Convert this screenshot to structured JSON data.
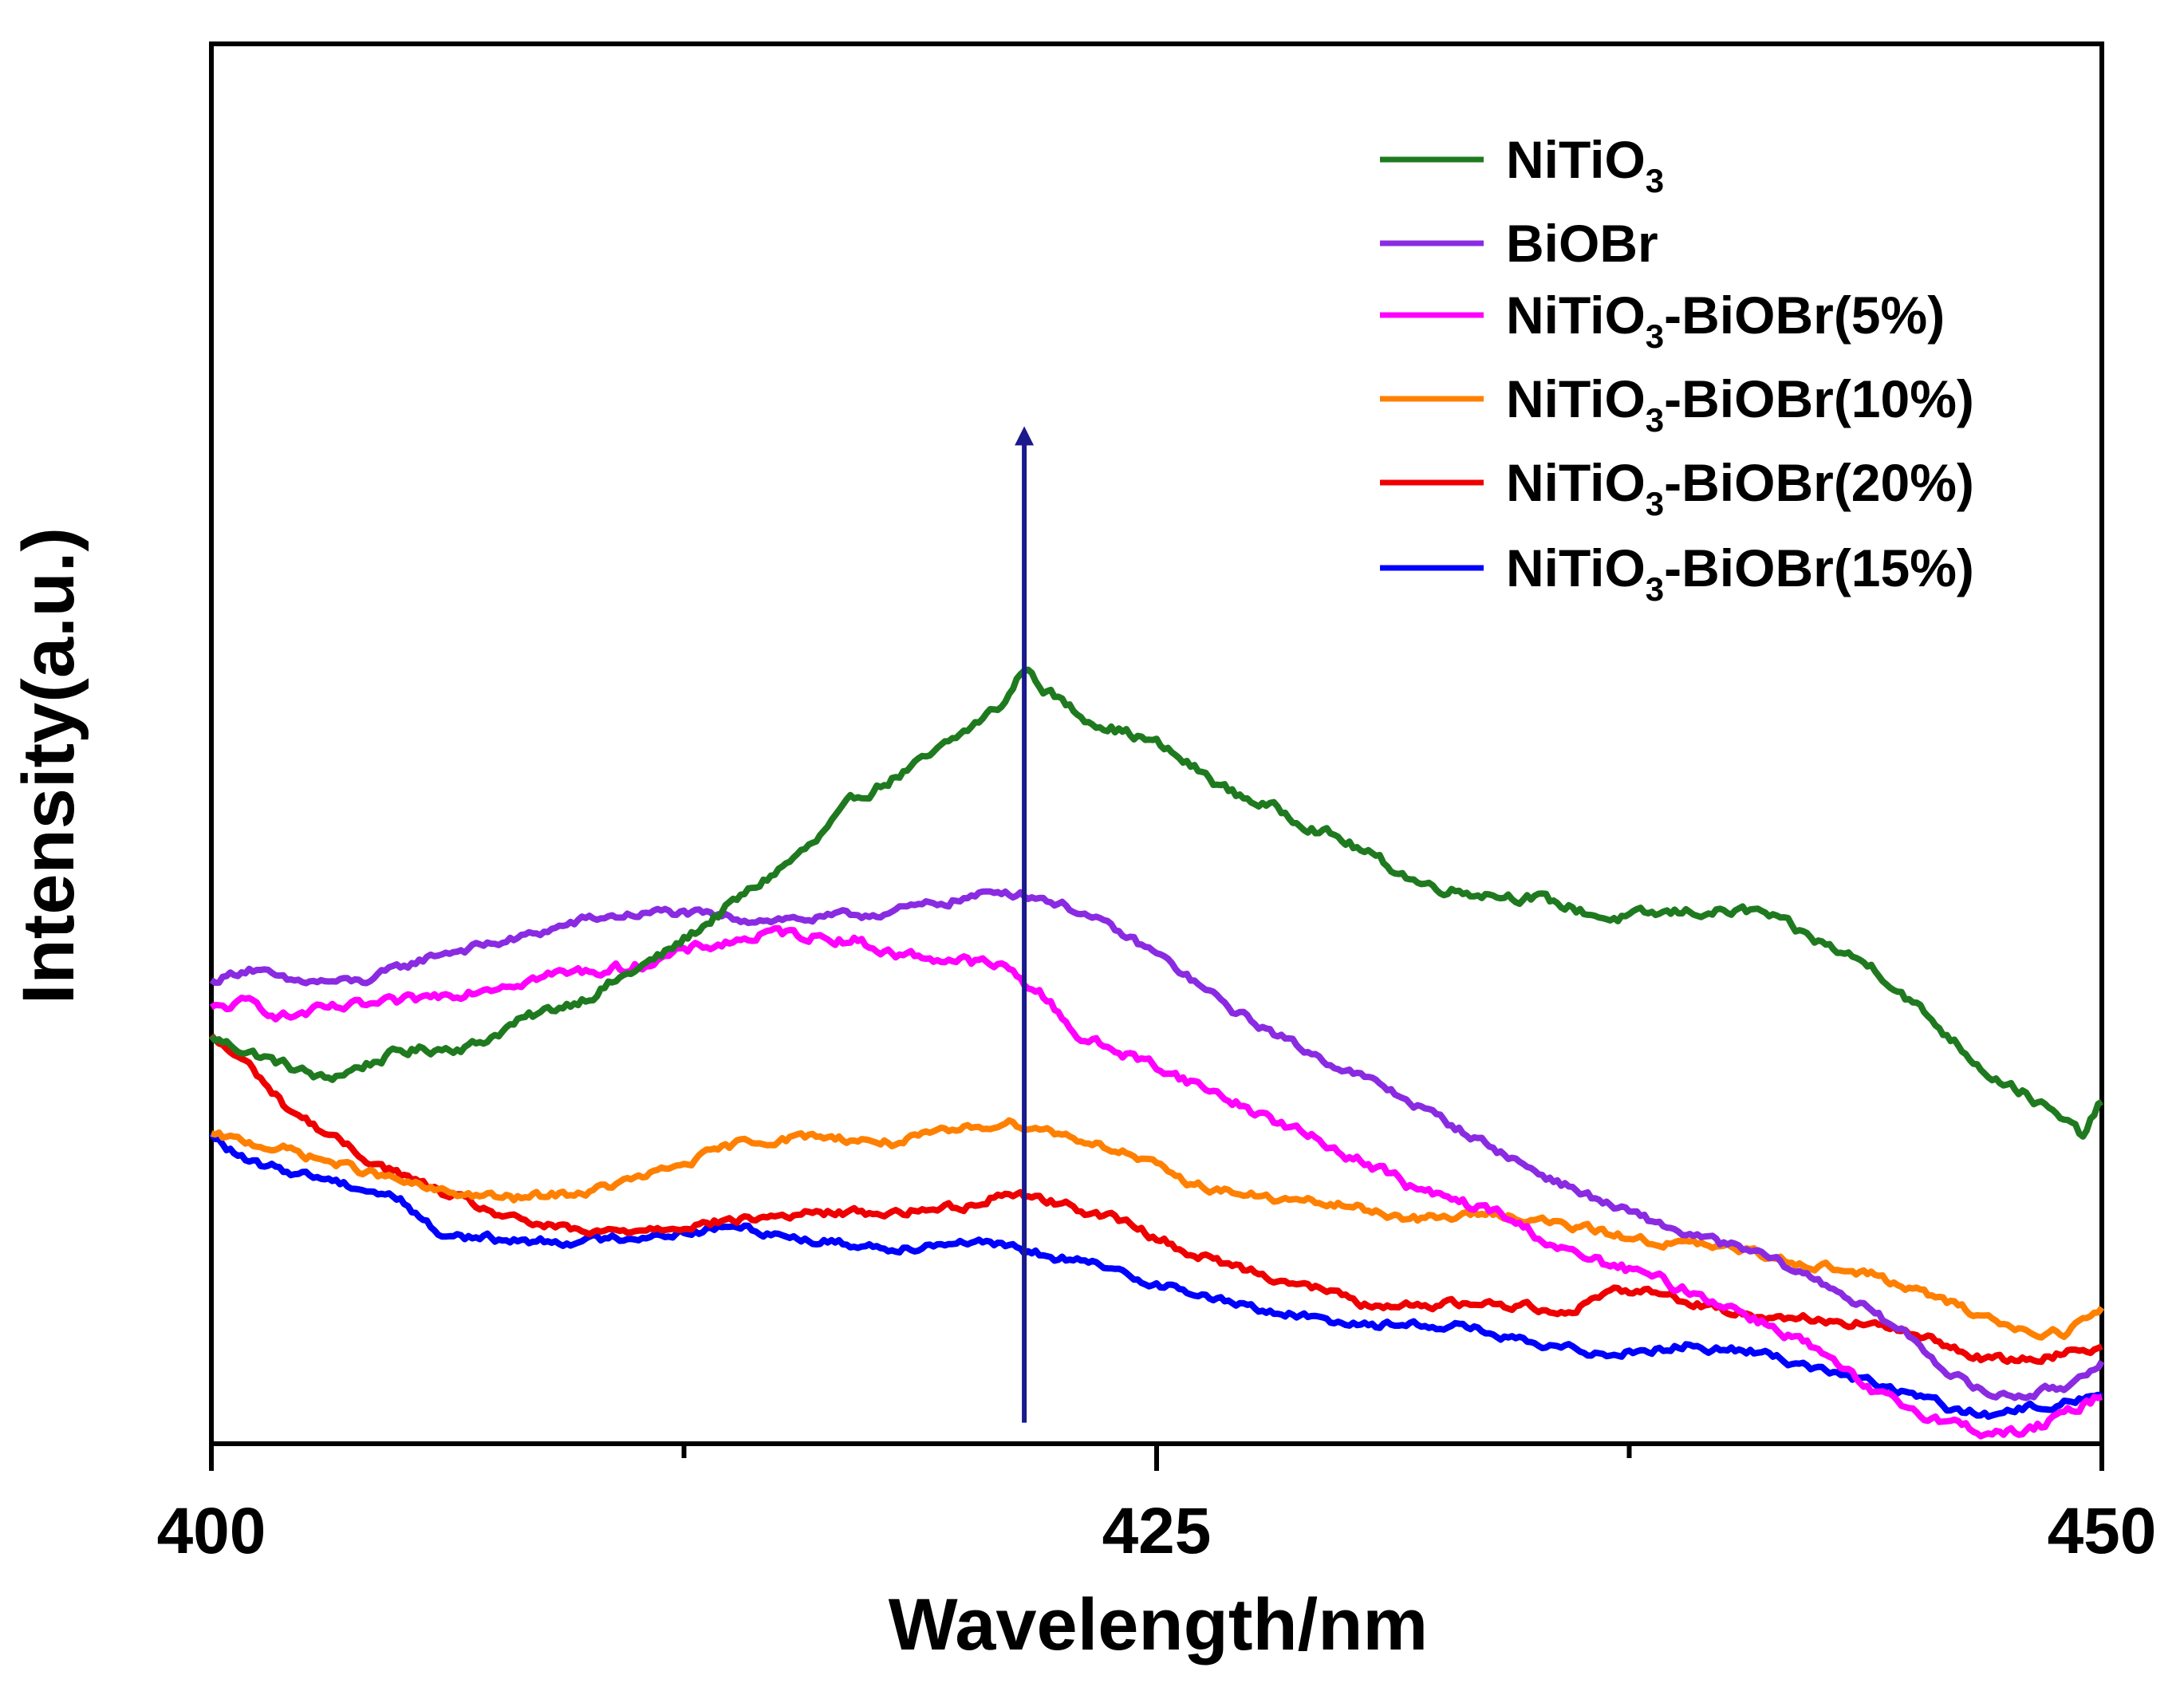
{
  "chart_data": {
    "type": "line",
    "title": "",
    "xlabel": "Wavelength/nm",
    "ylabel": "Intensity(a.u.)",
    "xlim": [
      400,
      450
    ],
    "ylim": [
      0,
      100
    ],
    "x_ticks": [
      400,
      425,
      450
    ],
    "x_tick_labels": [
      "400",
      "425",
      "450"
    ],
    "y_ticks_shown": false,
    "grid": false,
    "legend_position": "top-right",
    "colors": {
      "nitio3": "#1f7a1f",
      "biobr": "#8a2be2",
      "p5": "#ff00ff",
      "p10": "#ff8000",
      "p20": "#ee0000",
      "p15": "#0000ff",
      "arrow": "#1a1a8c"
    },
    "annotation": {
      "type": "arrow",
      "x": 421.5,
      "y_from": 1.5,
      "y_to": 72,
      "direction": "up",
      "color": "#1a1a8c"
    },
    "series": [
      {
        "key": "nitio3",
        "name": "NiTiO3",
        "legend_main": "NiTiO",
        "legend_sub": "3",
        "legend_tail": "",
        "noise": 0.5,
        "points": [
          [
            400,
            29
          ],
          [
            401,
            28
          ],
          [
            403,
            26
          ],
          [
            405,
            28
          ],
          [
            407,
            28.5
          ],
          [
            408,
            30
          ],
          [
            410,
            32
          ],
          [
            412,
            35
          ],
          [
            414,
            39
          ],
          [
            416,
            43
          ],
          [
            417,
            46
          ],
          [
            418,
            47.5
          ],
          [
            419,
            49
          ],
          [
            420,
            51
          ],
          [
            421,
            53
          ],
          [
            421.5,
            55.5
          ],
          [
            422,
            54
          ],
          [
            423,
            52
          ],
          [
            425,
            50
          ],
          [
            427,
            46.5
          ],
          [
            428,
            45.5
          ],
          [
            430,
            43
          ],
          [
            432,
            40
          ],
          [
            433,
            39.5
          ],
          [
            435,
            39
          ],
          [
            437,
            37.5
          ],
          [
            439,
            38
          ],
          [
            441,
            38
          ],
          [
            442,
            36.5
          ],
          [
            444,
            34
          ],
          [
            446,
            29
          ],
          [
            447,
            26.5
          ],
          [
            448,
            25
          ],
          [
            449,
            23
          ],
          [
            449.5,
            22
          ],
          [
            450,
            24.5
          ]
        ]
      },
      {
        "key": "biobr",
        "name": "BiOBr",
        "legend_main": "BiOBr",
        "legend_sub": "",
        "legend_tail": "",
        "noise": 0.4,
        "points": [
          [
            400,
            33
          ],
          [
            401,
            34
          ],
          [
            402,
            33
          ],
          [
            404,
            33
          ],
          [
            405,
            34
          ],
          [
            406,
            35
          ],
          [
            408,
            36
          ],
          [
            410,
            37.5
          ],
          [
            412,
            38
          ],
          [
            414,
            37.5
          ],
          [
            416,
            37.5
          ],
          [
            418,
            38
          ],
          [
            420,
            39
          ],
          [
            421,
            39.5
          ],
          [
            422,
            39
          ],
          [
            423,
            38
          ],
          [
            425,
            35
          ],
          [
            427,
            31
          ],
          [
            429,
            28
          ],
          [
            431,
            25.5
          ],
          [
            433,
            22.5
          ],
          [
            435,
            19.5
          ],
          [
            437,
            17
          ],
          [
            439,
            15
          ],
          [
            441,
            13.5
          ],
          [
            443,
            11
          ],
          [
            445,
            7.5
          ],
          [
            446,
            5
          ],
          [
            447,
            3.5
          ],
          [
            448,
            3.5
          ],
          [
            449,
            4
          ],
          [
            450,
            6
          ]
        ]
      },
      {
        "key": "p5",
        "name": "NiTiO3-BiOBr(5%)",
        "legend_main": "NiTiO",
        "legend_sub": "3",
        "legend_tail": "-BiOBr(5%)",
        "noise": 0.5,
        "points": [
          [
            400,
            31
          ],
          [
            401,
            31.5
          ],
          [
            402,
            30.5
          ],
          [
            403,
            31
          ],
          [
            405,
            31.5
          ],
          [
            407,
            32.5
          ],
          [
            409,
            33.5
          ],
          [
            411,
            34
          ],
          [
            413,
            35.5
          ],
          [
            415,
            36.5
          ],
          [
            417,
            36
          ],
          [
            418,
            35
          ],
          [
            420,
            34.5
          ],
          [
            421,
            34
          ],
          [
            422,
            32
          ],
          [
            423,
            29
          ],
          [
            425,
            27
          ],
          [
            427,
            24.5
          ],
          [
            429,
            22
          ],
          [
            431,
            19.5
          ],
          [
            432,
            18
          ],
          [
            434,
            16.5
          ],
          [
            435,
            15
          ],
          [
            436,
            13.5
          ],
          [
            438,
            12
          ],
          [
            440,
            10
          ],
          [
            442,
            7.5
          ],
          [
            443,
            5.5
          ],
          [
            444,
            3.5
          ],
          [
            445,
            2.5
          ],
          [
            446,
            1.5
          ],
          [
            447,
            0.8
          ],
          [
            448,
            0.8
          ],
          [
            449,
            2
          ],
          [
            450,
            3.5
          ]
        ]
      },
      {
        "key": "p10",
        "name": "NiTiO3-BiOBr(10%)",
        "legend_main": "NiTiO",
        "legend_sub": "3",
        "legend_tail": "-BiOBr(10%)",
        "noise": 0.4,
        "points": [
          [
            400,
            22
          ],
          [
            402,
            21
          ],
          [
            404,
            19.5
          ],
          [
            406,
            18
          ],
          [
            408,
            17.5
          ],
          [
            410,
            18
          ],
          [
            412,
            19.5
          ],
          [
            414,
            21.5
          ],
          [
            416,
            22
          ],
          [
            418,
            21.5
          ],
          [
            420,
            22.5
          ],
          [
            421,
            23
          ],
          [
            422,
            22.5
          ],
          [
            424,
            21
          ],
          [
            426,
            18.5
          ],
          [
            428,
            17.5
          ],
          [
            430,
            17
          ],
          [
            432,
            16
          ],
          [
            434,
            16.5
          ],
          [
            436,
            15.5
          ],
          [
            438,
            14.5
          ],
          [
            440,
            14
          ],
          [
            442,
            13
          ],
          [
            444,
            12
          ],
          [
            446,
            10
          ],
          [
            447,
            9
          ],
          [
            448,
            8
          ],
          [
            449,
            8
          ],
          [
            450,
            9.5
          ]
        ]
      },
      {
        "key": "p20",
        "name": "NiTiO3-BiOBr(20%)",
        "legend_main": "NiTiO",
        "legend_sub": "3",
        "legend_tail": "-BiOBr(20%)",
        "noise": 0.4,
        "points": [
          [
            400,
            29
          ],
          [
            401,
            27
          ],
          [
            402,
            24
          ],
          [
            404,
            20.5
          ],
          [
            406,
            18
          ],
          [
            408,
            16
          ],
          [
            410,
            15
          ],
          [
            412,
            15.5
          ],
          [
            414,
            16
          ],
          [
            416,
            16.5
          ],
          [
            418,
            16.5
          ],
          [
            420,
            17
          ],
          [
            421,
            18
          ],
          [
            422,
            17.5
          ],
          [
            424,
            16
          ],
          [
            426,
            13.5
          ],
          [
            428,
            12
          ],
          [
            430,
            10.5
          ],
          [
            431,
            9.5
          ],
          [
            432,
            10
          ],
          [
            434,
            10
          ],
          [
            436,
            9.5
          ],
          [
            437,
            11
          ],
          [
            438,
            11
          ],
          [
            440,
            9.5
          ],
          [
            442,
            9
          ],
          [
            444,
            8.5
          ],
          [
            446,
            7
          ],
          [
            447,
            6
          ],
          [
            448,
            6
          ],
          [
            449,
            6.5
          ],
          [
            450,
            7
          ]
        ]
      },
      {
        "key": "p15",
        "name": "NiTiO3-BiOBr(15%)",
        "legend_main": "NiTiO",
        "legend_sub": "3",
        "legend_tail": "-BiOBr(15%)",
        "noise": 0.4,
        "points": [
          [
            400,
            22
          ],
          [
            401,
            20
          ],
          [
            403,
            19
          ],
          [
            405,
            17.5
          ],
          [
            406,
            15
          ],
          [
            408,
            14.5
          ],
          [
            410,
            14.5
          ],
          [
            412,
            15
          ],
          [
            414,
            15.5
          ],
          [
            416,
            14.5
          ],
          [
            418,
            14
          ],
          [
            420,
            14.5
          ],
          [
            421,
            14
          ],
          [
            423,
            13
          ],
          [
            425,
            11.5
          ],
          [
            427,
            10
          ],
          [
            429,
            9
          ],
          [
            431,
            8.5
          ],
          [
            433,
            8.5
          ],
          [
            435,
            7
          ],
          [
            437,
            6.5
          ],
          [
            439,
            7
          ],
          [
            441,
            6.5
          ],
          [
            443,
            5
          ],
          [
            445,
            3.5
          ],
          [
            446,
            2.5
          ],
          [
            447,
            2
          ],
          [
            448,
            2.5
          ],
          [
            449,
            3
          ],
          [
            450,
            3.5
          ]
        ]
      }
    ]
  }
}
